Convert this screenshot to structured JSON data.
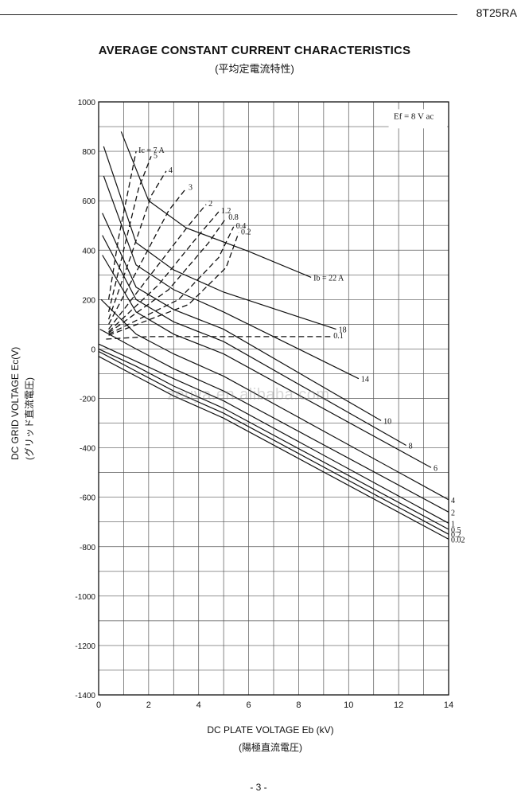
{
  "header": {
    "model": "8T25RA"
  },
  "page": {
    "number": "- 3 -"
  },
  "watermark": "zeuya.en.alibaba.com",
  "chart_data": {
    "type": "line",
    "title": "AVERAGE CONSTANT CURRENT CHARACTERISTICS",
    "subtitle": "(平均定電流特性)",
    "xlabel": "DC PLATE VOLTAGE Eb (kV)",
    "xlabel_sub": "(陽極直流電圧)",
    "ylabel": "DC GRID VOLTAGE Ec(V)",
    "ylabel_sub": "(グリッド直流電圧)",
    "xlim": [
      0,
      14
    ],
    "ylim": [
      -1400,
      1000
    ],
    "x_ticks": [
      "0",
      "2",
      "4",
      "6",
      "8",
      "10",
      "12",
      "14"
    ],
    "y_ticks": [
      "1000",
      "800",
      "600",
      "400",
      "200",
      "0",
      "-200",
      "-400",
      "-600",
      "-800",
      "-1000",
      "-1200",
      "-1400"
    ],
    "grid": true,
    "annotation": "Ef = 8 V ac",
    "ib_series": [
      {
        "label": "Ib = 22 A",
        "points": [
          [
            0.9,
            880
          ],
          [
            2.0,
            600
          ],
          [
            3.5,
            490
          ],
          [
            6,
            395
          ],
          [
            8.5,
            290
          ]
        ]
      },
      {
        "label": "18",
        "points": [
          [
            0.2,
            820
          ],
          [
            1.5,
            430
          ],
          [
            3,
            320
          ],
          [
            5,
            230
          ],
          [
            9.5,
            80
          ]
        ]
      },
      {
        "label": "14",
        "points": [
          [
            0.2,
            700
          ],
          [
            1.5,
            340
          ],
          [
            3,
            240
          ],
          [
            5,
            150
          ],
          [
            10.4,
            -120
          ]
        ]
      },
      {
        "label": "10",
        "points": [
          [
            0.15,
            550
          ],
          [
            1.5,
            250
          ],
          [
            3,
            160
          ],
          [
            5,
            80
          ],
          [
            11.3,
            -290
          ]
        ]
      },
      {
        "label": "8",
        "points": [
          [
            0.15,
            460
          ],
          [
            1.5,
            200
          ],
          [
            3,
            110
          ],
          [
            5,
            30
          ],
          [
            12.3,
            -390
          ]
        ]
      },
      {
        "label": "6",
        "points": [
          [
            0.15,
            380
          ],
          [
            1.5,
            150
          ],
          [
            3,
            60
          ],
          [
            5,
            -20
          ],
          [
            13.3,
            -480
          ]
        ]
      },
      {
        "label": "4",
        "points": [
          [
            0.1,
            200
          ],
          [
            1.5,
            60
          ],
          [
            3,
            -20
          ],
          [
            5,
            -110
          ],
          [
            14,
            -610
          ]
        ]
      },
      {
        "label": "2",
        "points": [
          [
            0.05,
            80
          ],
          [
            1.5,
            0
          ],
          [
            3,
            -80
          ],
          [
            5,
            -170
          ],
          [
            14,
            -660
          ]
        ]
      },
      {
        "label": "1",
        "points": [
          [
            0,
            20
          ],
          [
            1.5,
            -50
          ],
          [
            3,
            -120
          ],
          [
            5,
            -210
          ],
          [
            14,
            -705
          ]
        ]
      },
      {
        "label": "0.5",
        "points": [
          [
            0,
            0
          ],
          [
            1.5,
            -70
          ],
          [
            3,
            -150
          ],
          [
            5,
            -240
          ],
          [
            14,
            -730
          ]
        ]
      },
      {
        "label": "0.2",
        "points": [
          [
            0,
            -10
          ],
          [
            1.5,
            -90
          ],
          [
            3,
            -170
          ],
          [
            5,
            -260
          ],
          [
            14,
            -750
          ]
        ]
      },
      {
        "label": "0.02",
        "points": [
          [
            0,
            -30
          ],
          [
            1.5,
            -110
          ],
          [
            3,
            -190
          ],
          [
            5,
            -280
          ],
          [
            14,
            -770
          ]
        ]
      }
    ],
    "ic_series": [
      {
        "label": "Ic = 7 A",
        "points": [
          [
            0.4,
            200
          ],
          [
            0.8,
            450
          ],
          [
            1.2,
            650
          ],
          [
            1.5,
            800
          ]
        ]
      },
      {
        "label": "5",
        "points": [
          [
            0.4,
            150
          ],
          [
            1.0,
            400
          ],
          [
            1.6,
            650
          ],
          [
            2.1,
            780
          ]
        ]
      },
      {
        "label": "4",
        "points": [
          [
            0.4,
            120
          ],
          [
            1.3,
            380
          ],
          [
            2.1,
            620
          ],
          [
            2.7,
            720
          ]
        ]
      },
      {
        "label": "3",
        "points": [
          [
            0.4,
            100
          ],
          [
            1.6,
            330
          ],
          [
            2.8,
            560
          ],
          [
            3.5,
            650
          ]
        ]
      },
      {
        "label": "2",
        "points": [
          [
            0.4,
            80
          ],
          [
            2.0,
            290
          ],
          [
            3.6,
            500
          ],
          [
            4.3,
            585
          ]
        ]
      },
      {
        "label": "1.2",
        "points": [
          [
            0.4,
            70
          ],
          [
            2.4,
            260
          ],
          [
            4.0,
            460
          ],
          [
            4.8,
            555
          ]
        ]
      },
      {
        "label": "0.8",
        "points": [
          [
            0.4,
            65
          ],
          [
            2.8,
            240
          ],
          [
            4.4,
            430
          ],
          [
            5.1,
            530
          ]
        ]
      },
      {
        "label": "0.4",
        "points": [
          [
            0.4,
            60
          ],
          [
            3.2,
            200
          ],
          [
            4.8,
            370
          ],
          [
            5.4,
            495
          ]
        ]
      },
      {
        "label": "0.2",
        "points": [
          [
            0.4,
            55
          ],
          [
            3.6,
            180
          ],
          [
            5.1,
            330
          ],
          [
            5.6,
            470
          ]
        ]
      },
      {
        "label": "0.1",
        "points": [
          [
            0.3,
            40
          ],
          [
            2.0,
            50
          ],
          [
            6.0,
            50
          ],
          [
            9.3,
            50
          ]
        ]
      }
    ]
  }
}
